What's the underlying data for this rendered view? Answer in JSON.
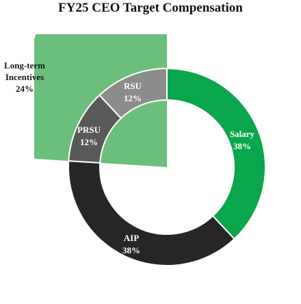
{
  "chart_data": {
    "type": "pie",
    "title": "FY25 CEO Target Compensation",
    "style": "donut",
    "slices": [
      {
        "label": "Salary",
        "value": 38,
        "value_label": "38%",
        "color": "#0aa64b",
        "text_color": "#ffffff"
      },
      {
        "label": "AIP",
        "value": 38,
        "value_label": "38%",
        "color": "#262626",
        "text_color": "#ffffff"
      },
      {
        "label": "PRSU",
        "value": 12,
        "value_label": "12%",
        "color": "#595959",
        "text_color": "#ffffff"
      },
      {
        "label": "RSU",
        "value": 12,
        "value_label": "12%",
        "color": "#8c8c8c",
        "text_color": "#ffffff"
      }
    ],
    "group": {
      "label_lines": [
        "Long-term",
        "Incentives"
      ],
      "value": 24,
      "value_label": "24%",
      "color": "#6abf7b",
      "text_color": "#1a1a1a",
      "members": [
        "PRSU",
        "RSU"
      ]
    }
  }
}
